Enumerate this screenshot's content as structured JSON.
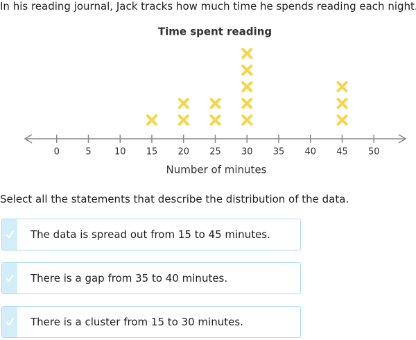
{
  "prompt": "In his reading journal, Jack tracks how much time he spends reading each night.",
  "chart_data": {
    "type": "dotplot",
    "title": "Time spent reading",
    "xlabel": "Number of minutes",
    "x": [
      15,
      20,
      25,
      30,
      45
    ],
    "values": [
      1,
      2,
      2,
      5,
      3
    ],
    "color": "#f7d548",
    "xlim": [
      -5,
      55
    ],
    "xticks": [
      0,
      5,
      10,
      15,
      20,
      25,
      30,
      35,
      40,
      45,
      50
    ]
  },
  "question": "Select all the statements that describe the distribution of the data.",
  "options": [
    "The data is spread out from 15 to 45 minutes.",
    "There is a gap from 35 to 40 minutes.",
    "There is a cluster from 15 to 30 minutes."
  ]
}
